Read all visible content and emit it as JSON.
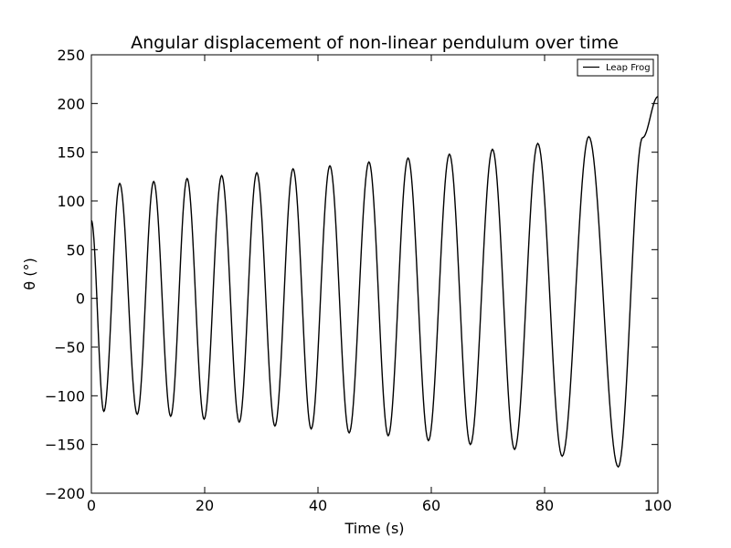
{
  "chart_data": {
    "type": "line",
    "title": "Angular displacement of non-linear pendulum over time",
    "xlabel": "Time (s)",
    "ylabel": "θ (°)",
    "xlim": [
      0,
      100
    ],
    "ylim": [
      -200,
      250
    ],
    "xticks": [
      0,
      20,
      40,
      60,
      80,
      100
    ],
    "yticks": [
      -200,
      -150,
      -100,
      -50,
      0,
      50,
      100,
      150,
      200,
      250
    ],
    "xtick_labels": [
      "0",
      "20",
      "40",
      "60",
      "80",
      "100"
    ],
    "ytick_labels": [
      "−200",
      "−150",
      "−100",
      "−50",
      "0",
      "50",
      "100",
      "150",
      "200",
      "250"
    ],
    "grid": false,
    "legend": {
      "position": "top-right",
      "entries": [
        "Leap Frog"
      ]
    },
    "line_color": "#000000",
    "series": [
      {
        "name": "Leap Frog",
        "x": [
          0,
          2.2,
          5.0,
          8.1,
          11.0,
          14.0,
          16.9,
          19.9,
          23.0,
          26.1,
          29.2,
          32.4,
          35.6,
          38.8,
          42.1,
          45.5,
          49.0,
          52.4,
          55.9,
          59.5,
          63.2,
          66.9,
          70.8,
          74.7,
          78.8,
          83.1,
          87.8,
          93.0,
          97.3,
          100
        ],
        "y": [
          80,
          -116,
          118,
          -119,
          120,
          -121,
          123,
          -124,
          126,
          -127,
          129,
          -131,
          133,
          -134,
          136,
          -138,
          140,
          -141,
          144,
          -146,
          148,
          -150,
          153,
          -155,
          159,
          -162,
          166,
          -173,
          165,
          207
        ]
      }
    ]
  }
}
